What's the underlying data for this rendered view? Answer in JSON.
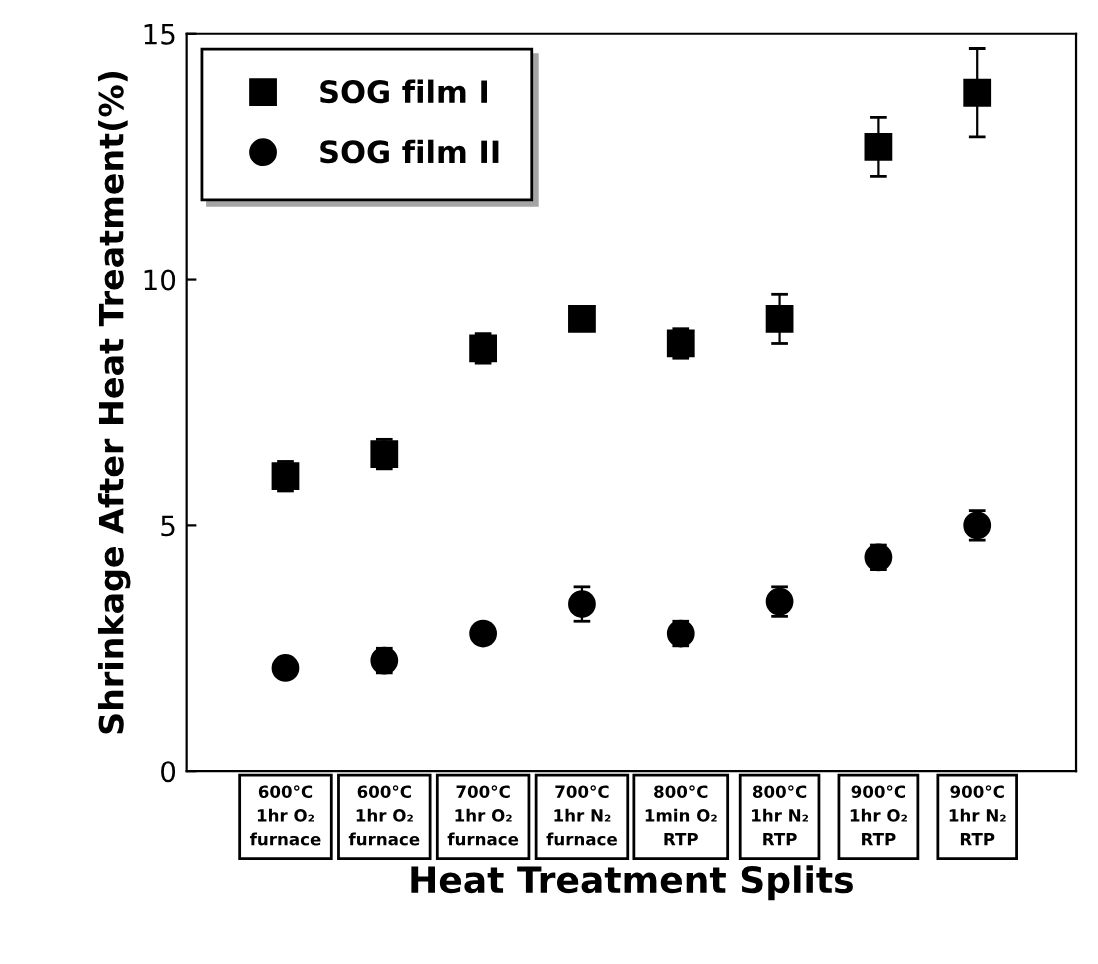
{
  "chart_data": {
    "type": "scatter",
    "xlabel": "Heat Treatment Splits",
    "ylabel": "Shrinkage After Heat Treatment(%)",
    "categories": [
      "600°C\n1hr O₂\nfurnace",
      "600°C\n1hr O₂\nfurnace",
      "700°C\n1hr O₂\nfurnace",
      "700°C\n1hr N₂\nfurnace",
      "800°C\n1min O₂\nRTP",
      "800°C\n1hr N₂\nRTP",
      "900°C\n1hr O₂\nRTP",
      "900°C\n1hr N₂\nRTP"
    ],
    "series": [
      {
        "name": "SOG film I",
        "color": "#000000",
        "marker": "square",
        "values": [
          6.0,
          6.45,
          8.6,
          9.2,
          8.7,
          9.2,
          12.7,
          13.8
        ],
        "errors": [
          0.3,
          0.3,
          0.3,
          0.2,
          0.3,
          0.5,
          0.6,
          0.9
        ]
      },
      {
        "name": "SOG film II",
        "color": "#000000",
        "marker": "circle",
        "values": [
          2.1,
          2.25,
          2.8,
          3.4,
          2.8,
          3.45,
          4.35,
          5.0
        ],
        "errors": [
          0.15,
          0.25,
          0.2,
          0.35,
          0.25,
          0.3,
          0.25,
          0.3
        ]
      }
    ],
    "ylim": [
      0,
      15
    ],
    "yticks": [
      0,
      5,
      10,
      15
    ],
    "grid": false,
    "legend": "top left"
  }
}
